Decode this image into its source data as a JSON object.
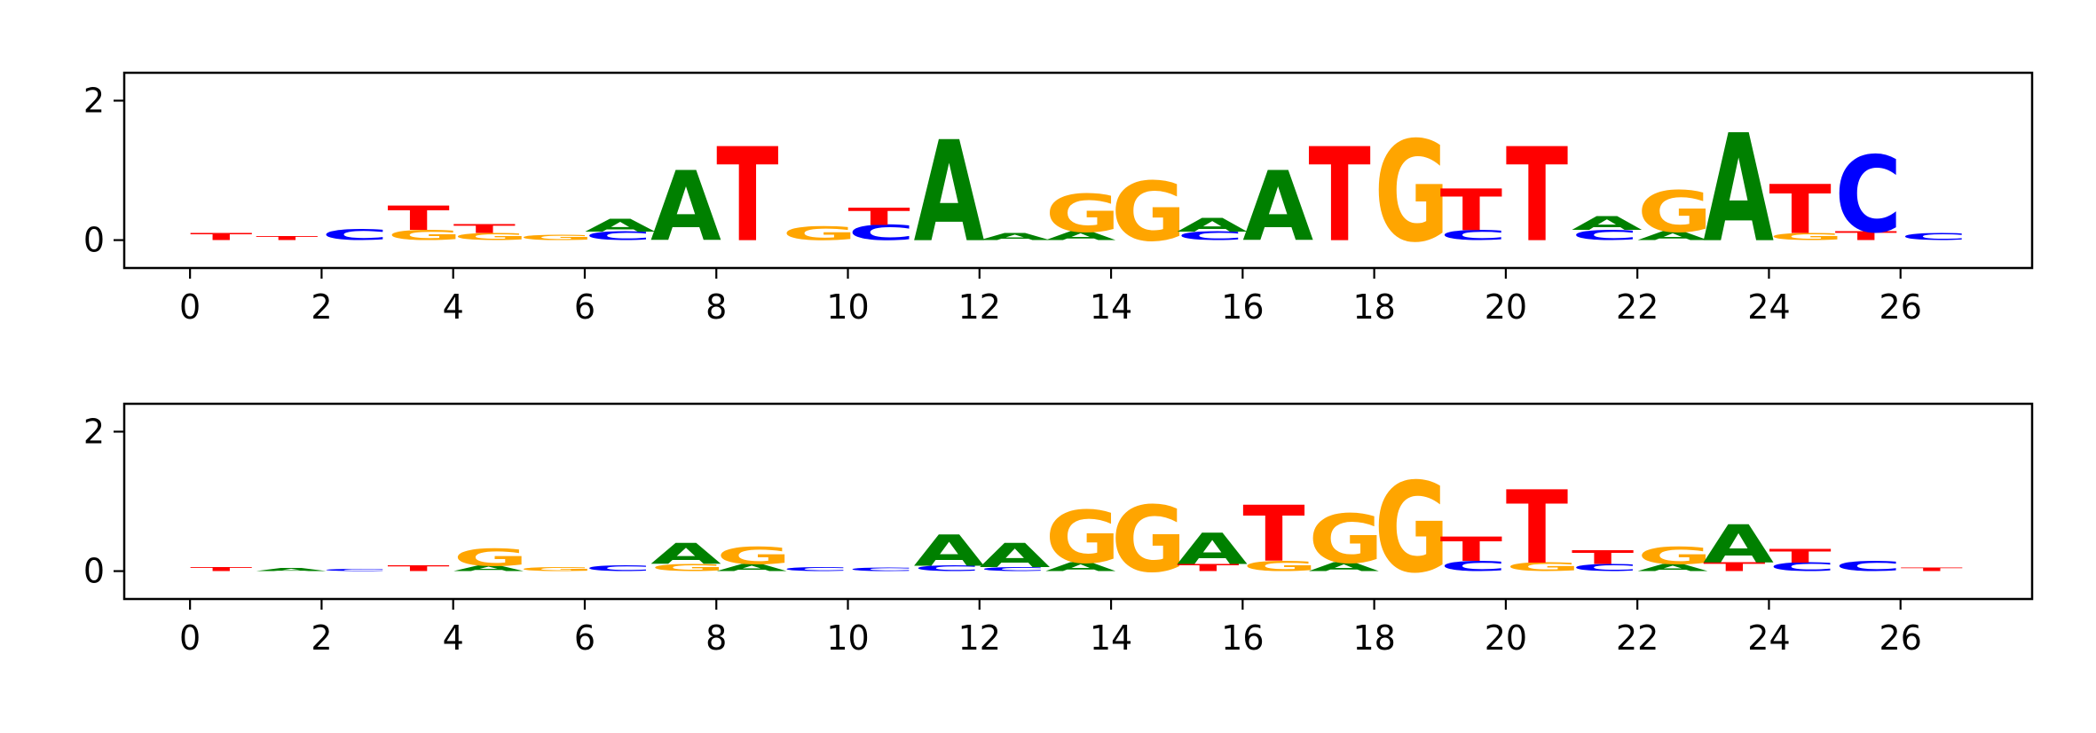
{
  "chart_data": [
    {
      "type": "sequence-logo",
      "xlim": [
        -1,
        28
      ],
      "ylim": [
        -0.4,
        2.4
      ],
      "xticks": [
        "0",
        "2",
        "4",
        "6",
        "8",
        "10",
        "12",
        "14",
        "16",
        "18",
        "20",
        "22",
        "24",
        "26"
      ],
      "yticks": [
        "0",
        "2"
      ],
      "positions": [
        {
          "x": 0,
          "letters": [
            {
              "l": "T",
              "h": 0.1
            }
          ]
        },
        {
          "x": 1,
          "letters": [
            {
              "l": "T",
              "h": 0.06
            }
          ]
        },
        {
          "x": 2,
          "letters": [
            {
              "l": "C",
              "h": 0.16
            }
          ]
        },
        {
          "x": 3,
          "letters": [
            {
              "l": "G",
              "h": 0.15
            },
            {
              "l": "T",
              "h": 0.35
            }
          ]
        },
        {
          "x": 4,
          "letters": [
            {
              "l": "G",
              "h": 0.1
            },
            {
              "l": "T",
              "h": 0.12
            }
          ]
        },
        {
          "x": 5,
          "letters": [
            {
              "l": "G",
              "h": 0.07
            }
          ]
        },
        {
          "x": 6,
          "letters": [
            {
              "l": "C",
              "h": 0.12
            },
            {
              "l": "A",
              "h": 0.18
            }
          ]
        },
        {
          "x": 7,
          "letters": [
            {
              "l": "A",
              "h": 1.0
            }
          ]
        },
        {
          "x": 8,
          "letters": [
            {
              "l": "T",
              "h": 1.35
            }
          ]
        },
        {
          "x": 9,
          "letters": [
            {
              "l": "G",
              "h": 0.2
            }
          ]
        },
        {
          "x": 10,
          "letters": [
            {
              "l": "C",
              "h": 0.22
            },
            {
              "l": "T",
              "h": 0.25
            }
          ]
        },
        {
          "x": 11,
          "letters": [
            {
              "l": "A",
              "h": 1.45
            }
          ]
        },
        {
          "x": 12,
          "letters": [
            {
              "l": "A",
              "h": 0.1
            }
          ]
        },
        {
          "x": 13,
          "letters": [
            {
              "l": "A",
              "h": 0.12
            },
            {
              "l": "G",
              "h": 0.55
            }
          ]
        },
        {
          "x": 14,
          "letters": [
            {
              "l": "G",
              "h": 0.85
            }
          ]
        },
        {
          "x": 15,
          "letters": [
            {
              "l": "C",
              "h": 0.12
            },
            {
              "l": "A",
              "h": 0.2
            }
          ]
        },
        {
          "x": 16,
          "letters": [
            {
              "l": "A",
              "h": 1.0
            }
          ]
        },
        {
          "x": 17,
          "letters": [
            {
              "l": "T",
              "h": 1.35
            }
          ]
        },
        {
          "x": 18,
          "letters": [
            {
              "l": "G",
              "h": 1.45
            }
          ]
        },
        {
          "x": 19,
          "letters": [
            {
              "l": "C",
              "h": 0.15
            },
            {
              "l": "T",
              "h": 0.6
            }
          ]
        },
        {
          "x": 20,
          "letters": [
            {
              "l": "T",
              "h": 1.35
            }
          ]
        },
        {
          "x": 21,
          "letters": [
            {
              "l": "C",
              "h": 0.15
            },
            {
              "l": "A",
              "h": 0.2
            }
          ]
        },
        {
          "x": 22,
          "letters": [
            {
              "l": "A",
              "h": 0.12
            },
            {
              "l": "G",
              "h": 0.6
            }
          ]
        },
        {
          "x": 23,
          "letters": [
            {
              "l": "A",
              "h": 1.55
            }
          ]
        },
        {
          "x": 24,
          "letters": [
            {
              "l": "G",
              "h": 0.1
            },
            {
              "l": "T",
              "h": 0.7
            }
          ]
        },
        {
          "x": 25,
          "letters": [
            {
              "l": "T",
              "h": 0.12
            },
            {
              "l": "C",
              "h": 1.1
            }
          ]
        },
        {
          "x": 26,
          "letters": [
            {
              "l": "C",
              "h": 0.1
            }
          ]
        }
      ]
    },
    {
      "type": "sequence-logo",
      "xlim": [
        -1,
        28
      ],
      "ylim": [
        -0.4,
        2.4
      ],
      "xticks": [
        "0",
        "2",
        "4",
        "6",
        "8",
        "10",
        "12",
        "14",
        "16",
        "18",
        "20",
        "22",
        "24",
        "26"
      ],
      "yticks": [
        "0",
        "2"
      ],
      "positions": [
        {
          "x": 0,
          "letters": [
            {
              "l": "T",
              "h": 0.06
            }
          ]
        },
        {
          "x": 1,
          "letters": [
            {
              "l": "A",
              "h": 0.04
            }
          ]
        },
        {
          "x": 2,
          "letters": [
            {
              "l": "C",
              "h": 0.03
            }
          ]
        },
        {
          "x": 3,
          "letters": [
            {
              "l": "T",
              "h": 0.08
            }
          ]
        },
        {
          "x": 4,
          "letters": [
            {
              "l": "A",
              "h": 0.08
            },
            {
              "l": "G",
              "h": 0.25
            }
          ]
        },
        {
          "x": 5,
          "letters": [
            {
              "l": "G",
              "h": 0.06
            }
          ]
        },
        {
          "x": 6,
          "letters": [
            {
              "l": "C",
              "h": 0.08
            }
          ]
        },
        {
          "x": 7,
          "letters": [
            {
              "l": "G",
              "h": 0.1
            },
            {
              "l": "A",
              "h": 0.3
            }
          ]
        },
        {
          "x": 8,
          "letters": [
            {
              "l": "A",
              "h": 0.1
            },
            {
              "l": "G",
              "h": 0.25
            }
          ]
        },
        {
          "x": 9,
          "letters": [
            {
              "l": "C",
              "h": 0.06
            }
          ]
        },
        {
          "x": 10,
          "letters": [
            {
              "l": "C",
              "h": 0.05
            }
          ]
        },
        {
          "x": 11,
          "letters": [
            {
              "l": "C",
              "h": 0.08
            },
            {
              "l": "A",
              "h": 0.45
            }
          ]
        },
        {
          "x": 12,
          "letters": [
            {
              "l": "C",
              "h": 0.06
            },
            {
              "l": "A",
              "h": 0.35
            }
          ]
        },
        {
          "x": 13,
          "letters": [
            {
              "l": "A",
              "h": 0.12
            },
            {
              "l": "G",
              "h": 0.75
            }
          ]
        },
        {
          "x": 14,
          "letters": [
            {
              "l": "G",
              "h": 0.95
            }
          ]
        },
        {
          "x": 15,
          "letters": [
            {
              "l": "T",
              "h": 0.1
            },
            {
              "l": "A",
              "h": 0.45
            }
          ]
        },
        {
          "x": 16,
          "letters": [
            {
              "l": "G",
              "h": 0.15
            },
            {
              "l": "T",
              "h": 0.8
            }
          ]
        },
        {
          "x": 17,
          "letters": [
            {
              "l": "A",
              "h": 0.12
            },
            {
              "l": "G",
              "h": 0.7
            }
          ]
        },
        {
          "x": 18,
          "letters": [
            {
              "l": "G",
              "h": 1.3
            }
          ]
        },
        {
          "x": 19,
          "letters": [
            {
              "l": "C",
              "h": 0.15
            },
            {
              "l": "T",
              "h": 0.35
            }
          ]
        },
        {
          "x": 20,
          "letters": [
            {
              "l": "G",
              "h": 0.12
            },
            {
              "l": "T",
              "h": 1.05
            }
          ]
        },
        {
          "x": 21,
          "letters": [
            {
              "l": "C",
              "h": 0.1
            },
            {
              "l": "T",
              "h": 0.2
            }
          ]
        },
        {
          "x": 22,
          "letters": [
            {
              "l": "A",
              "h": 0.1
            },
            {
              "l": "G",
              "h": 0.25
            }
          ]
        },
        {
          "x": 23,
          "letters": [
            {
              "l": "T",
              "h": 0.12
            },
            {
              "l": "A",
              "h": 0.55
            }
          ]
        },
        {
          "x": 24,
          "letters": [
            {
              "l": "C",
              "h": 0.12
            },
            {
              "l": "T",
              "h": 0.2
            }
          ]
        },
        {
          "x": 25,
          "letters": [
            {
              "l": "C",
              "h": 0.15
            }
          ]
        },
        {
          "x": 26,
          "letters": [
            {
              "l": "T",
              "h": 0.05
            }
          ]
        }
      ]
    }
  ],
  "colors": {
    "A": "#008000",
    "C": "#0000ff",
    "G": "#ffa500",
    "T": "#ff0000",
    "axis": "#000000",
    "background": "#ffffff"
  }
}
